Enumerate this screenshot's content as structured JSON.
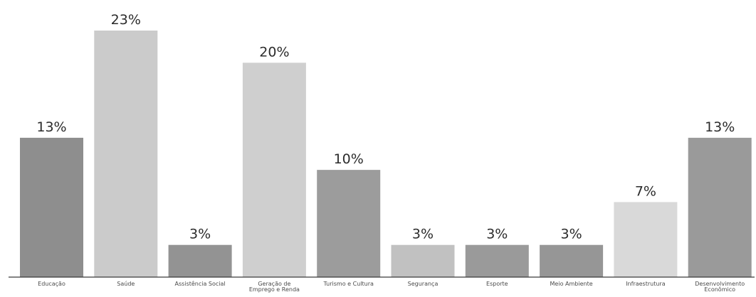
{
  "chart_data": {
    "type": "bar",
    "categories": [
      [
        "Educação"
      ],
      [
        "Saúde"
      ],
      [
        "Assistência Social"
      ],
      [
        "Geração de",
        "Emprego e Renda"
      ],
      [
        "Turismo e Cultura"
      ],
      [
        "Segurança"
      ],
      [
        "Esporte"
      ],
      [
        "Meio Ambiente"
      ],
      [
        "Infraestrutura"
      ],
      [
        "Desenvolvimento",
        "Econômico"
      ]
    ],
    "values": [
      13,
      23,
      3,
      20,
      10,
      3,
      3,
      3,
      7,
      13
    ],
    "value_labels": [
      "13%",
      "23%",
      "3%",
      "20%",
      "10%",
      "3%",
      "3%",
      "3%",
      "7%",
      "13%"
    ],
    "bar_colors": [
      "#8e8e8e",
      "#cbcbcb",
      "#939393",
      "#cfcfcf",
      "#9c9c9c",
      "#c1c1c1",
      "#9a9a9a",
      "#969696",
      "#d9d9d9",
      "#9a9a9a"
    ],
    "title": "",
    "xlabel": "",
    "ylabel": "",
    "ylim": [
      0,
      23
    ],
    "grid": false,
    "legend": "none"
  }
}
